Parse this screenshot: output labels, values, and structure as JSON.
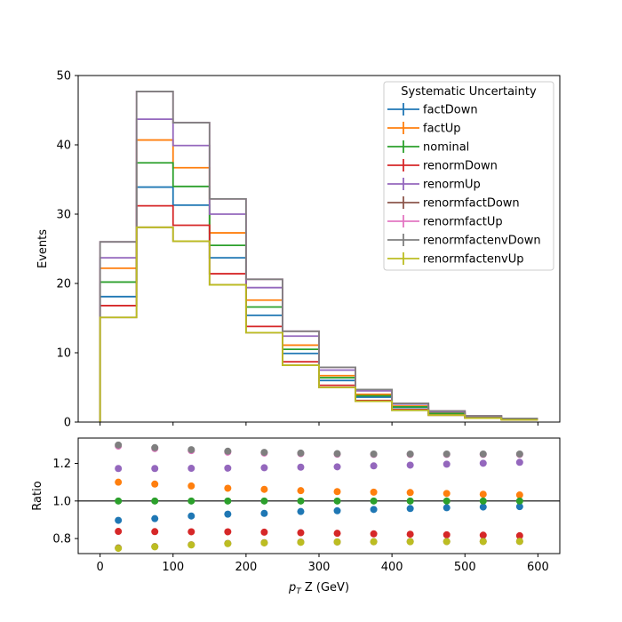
{
  "chart_data": [
    {
      "type": "step",
      "ylabel": "Events",
      "ylim": [
        0,
        50
      ],
      "xlim": [
        -30,
        630
      ],
      "yticks": [
        0,
        10,
        20,
        30,
        40,
        50
      ],
      "bin_edges": [
        0,
        50,
        100,
        150,
        200,
        250,
        300,
        350,
        400,
        450,
        500,
        550,
        600
      ],
      "legend": {
        "title": "Systematic Uncertainty",
        "placement": "top-right"
      },
      "series": [
        {
          "name": "factDown",
          "color": "#1f77b4",
          "values": [
            18.1,
            33.9,
            31.3,
            23.7,
            15.4,
            9.9,
            6.0,
            3.6,
            2.1,
            1.2,
            0.7,
            0.4
          ]
        },
        {
          "name": "factUp",
          "color": "#ff7f0e",
          "values": [
            22.2,
            40.7,
            36.7,
            27.3,
            17.6,
            11.1,
            6.7,
            4.0,
            2.3,
            1.3,
            0.75,
            0.42
          ]
        },
        {
          "name": "nominal",
          "color": "#2ca02c",
          "values": [
            20.2,
            37.4,
            34.0,
            25.5,
            16.6,
            10.5,
            6.4,
            3.8,
            2.2,
            1.25,
            0.72,
            0.41
          ]
        },
        {
          "name": "renormDown",
          "color": "#d62728",
          "values": [
            16.8,
            31.2,
            28.4,
            21.4,
            13.8,
            8.7,
            5.3,
            3.1,
            1.8,
            1.0,
            0.6,
            0.33
          ]
        },
        {
          "name": "renormUp",
          "color": "#9467bd",
          "values": [
            23.7,
            43.7,
            39.9,
            30.0,
            19.4,
            12.4,
            7.5,
            4.5,
            2.6,
            1.5,
            0.86,
            0.5
          ]
        },
        {
          "name": "renormfactDown",
          "color": "#8c564b",
          "values": [
            15.1,
            28.1,
            26.1,
            19.8,
            12.9,
            8.2,
            5.0,
            3.0,
            1.7,
            1.0,
            0.57,
            0.32
          ]
        },
        {
          "name": "renormfactUp",
          "color": "#e377c2",
          "values": [
            26.0,
            47.7,
            43.2,
            32.2,
            20.6,
            13.1,
            7.9,
            4.7,
            2.7,
            1.6,
            0.9,
            0.52
          ]
        },
        {
          "name": "renormfactenvDown",
          "color": "#7f7f7f",
          "values": [
            26.0,
            47.7,
            43.2,
            32.2,
            20.6,
            13.1,
            7.9,
            4.7,
            2.7,
            1.6,
            0.9,
            0.52
          ]
        },
        {
          "name": "renormfactenvUp",
          "color": "#bcbd22",
          "values": [
            15.1,
            28.1,
            26.1,
            19.8,
            12.9,
            8.2,
            5.0,
            3.0,
            1.7,
            1.0,
            0.57,
            0.32
          ]
        }
      ]
    },
    {
      "type": "scatter",
      "ylabel": "Ratio",
      "xlabel_parts": {
        "p": "p",
        "sub": "T",
        "rest": " Z (GeV)"
      },
      "xlim": [
        -30,
        630
      ],
      "ylim": [
        0.72,
        1.335
      ],
      "xticks": [
        0,
        100,
        200,
        300,
        400,
        500,
        600
      ],
      "yticks": [
        0.8,
        1.0,
        1.2
      ],
      "ytick_labels": [
        "0.8",
        "1.0",
        "1.2"
      ],
      "reference_line": 1.0,
      "x": [
        25,
        75,
        125,
        175,
        225,
        275,
        325,
        375,
        425,
        475,
        525,
        575
      ],
      "series": [
        {
          "name": "factDown",
          "color": "#1f77b4",
          "values": [
            0.897,
            0.906,
            0.92,
            0.93,
            0.934,
            0.944,
            0.948,
            0.955,
            0.96,
            0.964,
            0.968,
            0.97
          ]
        },
        {
          "name": "factUp",
          "color": "#ff7f0e",
          "values": [
            1.1,
            1.09,
            1.08,
            1.068,
            1.062,
            1.055,
            1.05,
            1.047,
            1.045,
            1.04,
            1.036,
            1.032
          ]
        },
        {
          "name": "nominal",
          "color": "#2ca02c",
          "values": [
            1.0,
            1.0,
            1.0,
            1.0,
            1.0,
            1.0,
            1.0,
            1.0,
            1.0,
            1.0,
            1.0,
            1.0
          ]
        },
        {
          "name": "renormDown",
          "color": "#d62728",
          "values": [
            0.838,
            0.837,
            0.836,
            0.836,
            0.834,
            0.831,
            0.828,
            0.825,
            0.823,
            0.82,
            0.818,
            0.815
          ]
        },
        {
          "name": "renormUp",
          "color": "#9467bd",
          "values": [
            1.173,
            1.173,
            1.174,
            1.175,
            1.177,
            1.18,
            1.182,
            1.187,
            1.191,
            1.196,
            1.201,
            1.206
          ]
        },
        {
          "name": "renormfactDown",
          "color": "#8c564b",
          "values": [
            0.75,
            0.757,
            0.767,
            0.774,
            0.778,
            0.781,
            0.782,
            0.783,
            0.784,
            0.784,
            0.785,
            0.785
          ]
        },
        {
          "name": "renormfactUp",
          "color": "#e377c2",
          "values": [
            1.292,
            1.279,
            1.268,
            1.26,
            1.255,
            1.252,
            1.249,
            1.248,
            1.248,
            1.248,
            1.248,
            1.248
          ]
        },
        {
          "name": "renormfactenvDown",
          "color": "#7f7f7f",
          "values": [
            1.298,
            1.284,
            1.273,
            1.265,
            1.259,
            1.255,
            1.252,
            1.25,
            1.25,
            1.25,
            1.25,
            1.25
          ]
        },
        {
          "name": "renormfactenvUp",
          "color": "#bcbd22",
          "values": [
            0.748,
            0.756,
            0.766,
            0.773,
            0.777,
            0.78,
            0.782,
            0.783,
            0.783,
            0.784,
            0.784,
            0.785
          ]
        }
      ]
    }
  ]
}
